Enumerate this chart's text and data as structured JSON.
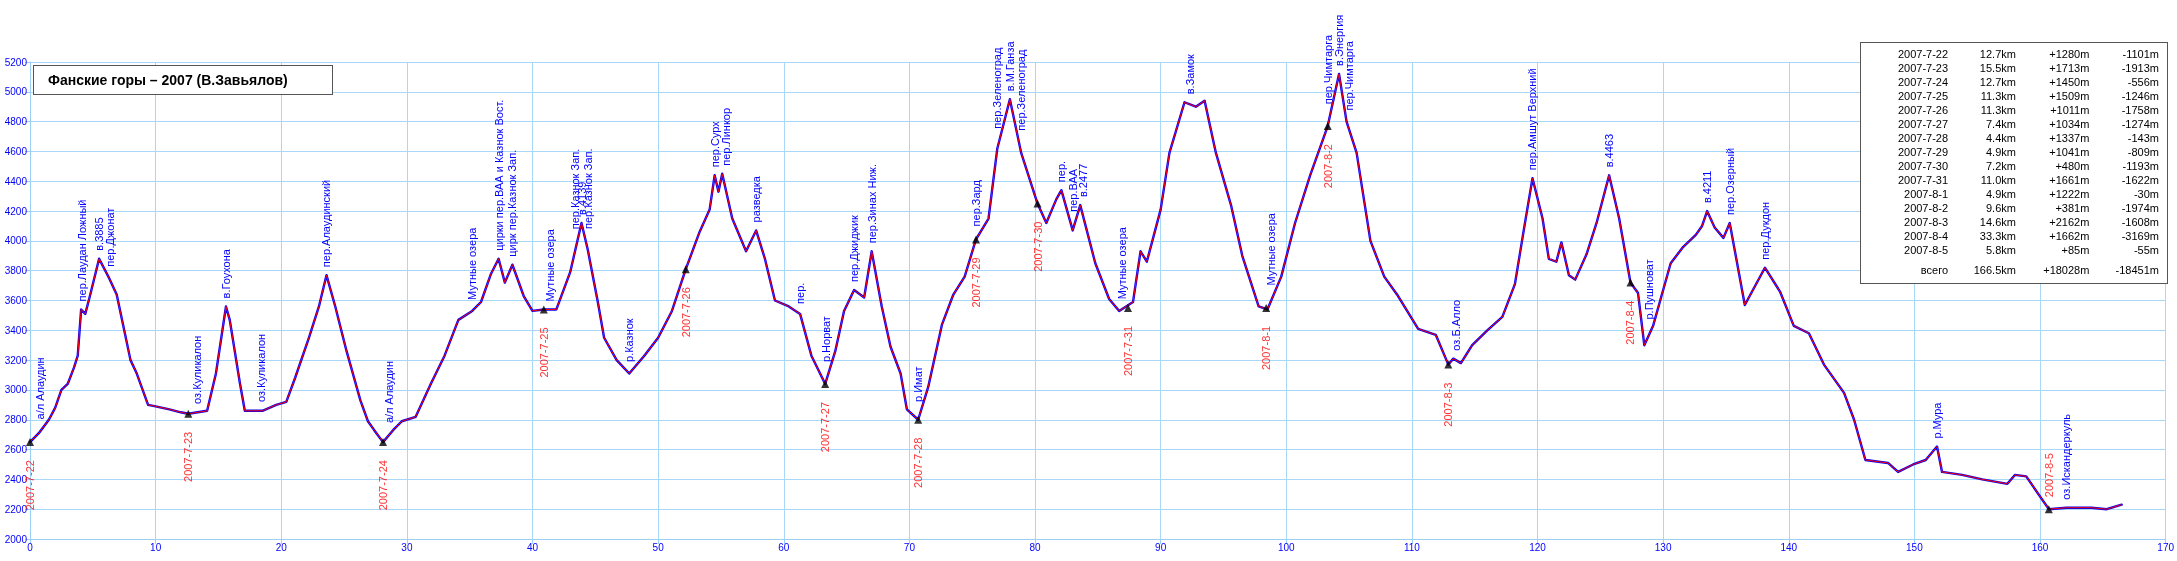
{
  "chart_data": {
    "type": "line",
    "title": "Фанские горы – 2007 (В.Завьялов)",
    "x": [
      0,
      0.7,
      1.5,
      2,
      2.5,
      3,
      3.5,
      3.8,
      4.07,
      4.4,
      4.8,
      5.5,
      6.3,
      6.9,
      7.4,
      8,
      8.5,
      9.4,
      10,
      11.1,
      12,
      12.6,
      14.1,
      14.8,
      15.6,
      15.9,
      16.7,
      17.1,
      18.5,
      19.6,
      20.4,
      21.1,
      22.2,
      23,
      23.6,
      24.3,
      25.2,
      26.3,
      26.9,
      27.4,
      28.1,
      28.9,
      29.6,
      30.7,
      31.9,
      33,
      34.1,
      35.2,
      35.9,
      36.7,
      37.3,
      37.8,
      38.4,
      39.3,
      40,
      40.9,
      41.9,
      43,
      43.9,
      44.4,
      45.2,
      45.7,
      46.7,
      47.7,
      48.9,
      50,
      51.1,
      52.2,
      53.3,
      54.1,
      54.5,
      54.8,
      55.1,
      55.9,
      57,
      57.8,
      58.5,
      59.3,
      60.4,
      61.3,
      62.2,
      63.3,
      64.1,
      64.8,
      65.6,
      66.4,
      67,
      67.8,
      68.5,
      69.3,
      69.8,
      70.7,
      71.5,
      72.6,
      73.5,
      74.4,
      75.3,
      76.3,
      77,
      78,
      78.9,
      80.2,
      80.9,
      81.7,
      82.1,
      83,
      83.6,
      84.8,
      85.9,
      86.7,
      87.8,
      88.4,
      88.9,
      90,
      90.7,
      91.9,
      92.8,
      93.5,
      94.4,
      95.6,
      96.5,
      97.8,
      98.5,
      99.6,
      100.7,
      101.9,
      103.3,
      104.2,
      104.8,
      105.6,
      106.7,
      107.8,
      108.9,
      110.5,
      111.9,
      112.9,
      113.3,
      113.9,
      114.8,
      116,
      117.2,
      118.2,
      119,
      119.6,
      120.4,
      120.9,
      121.5,
      121.9,
      122.5,
      123,
      123.9,
      124.7,
      125.7,
      126.5,
      127.4,
      128,
      128.5,
      129.2,
      129.8,
      130.6,
      131.6,
      132.6,
      133.1,
      133.5,
      134.1,
      134.8,
      135.3,
      136.5,
      138.1,
      139.3,
      140.4,
      141.6,
      142.8,
      144.4,
      145.2,
      146.1,
      147.9,
      148.7,
      149.9,
      150.9,
      151.8,
      152.2,
      153.8,
      155.4,
      157.4,
      158,
      158.9,
      160.7,
      162.1,
      164.1,
      165.3,
      166.5
    ],
    "series": [
      {
        "color": "#0000ff",
        "values": [
          2650,
          2710,
          2800,
          2880,
          3000,
          3040,
          3150,
          3230,
          3540,
          3510,
          3640,
          3880,
          3750,
          3640,
          3440,
          3200,
          3110,
          2900,
          2890,
          2870,
          2850,
          2840,
          2860,
          3110,
          3560,
          3470,
          3050,
          2860,
          2860,
          2900,
          2920,
          3080,
          3350,
          3560,
          3770,
          3560,
          3260,
          2930,
          2790,
          2730,
          2650,
          2730,
          2790,
          2820,
          3040,
          3230,
          3470,
          3530,
          3590,
          3780,
          3880,
          3720,
          3840,
          3630,
          3530,
          3540,
          3540,
          3790,
          4120,
          3940,
          3590,
          3350,
          3200,
          3110,
          3230,
          3350,
          3530,
          3810,
          4060,
          4210,
          4440,
          4330,
          4450,
          4150,
          3930,
          4070,
          3880,
          3600,
          3560,
          3510,
          3230,
          3040,
          3260,
          3530,
          3670,
          3620,
          3930,
          3560,
          3290,
          3110,
          2870,
          2800,
          3020,
          3440,
          3640,
          3760,
          4010,
          4150,
          4620,
          4950,
          4590,
          4250,
          4120,
          4280,
          4340,
          4070,
          4240,
          3850,
          3610,
          3530,
          3590,
          3930,
          3860,
          4210,
          4590,
          4930,
          4900,
          4940,
          4590,
          4240,
          3900,
          3560,
          3540,
          3760,
          4120,
          4440,
          4770,
          5120,
          4800,
          4590,
          4000,
          3760,
          3630,
          3410,
          3370,
          3170,
          3210,
          3180,
          3300,
          3400,
          3490,
          3710,
          4120,
          4420,
          4150,
          3880,
          3860,
          3990,
          3770,
          3740,
          3910,
          4120,
          4440,
          4150,
          3720,
          3650,
          3300,
          3430,
          3610,
          3850,
          3960,
          4040,
          4100,
          4200,
          4090,
          4020,
          4120,
          3570,
          3820,
          3660,
          3430,
          3380,
          3170,
          2980,
          2800,
          2530,
          2510,
          2450,
          2500,
          2530,
          2620,
          2450,
          2430,
          2400,
          2370,
          2430,
          2420,
          2200,
          2210,
          2210,
          2200,
          2230
        ]
      },
      {
        "color": "#ff0000",
        "values": [
          2650,
          2710,
          2800,
          2880,
          3000,
          3040,
          3150,
          3230,
          3540,
          3510,
          3640,
          3880,
          3750,
          3640,
          3440,
          3200,
          3110,
          2900,
          2890,
          2870,
          2850,
          2840,
          2860,
          3110,
          3560,
          3470,
          3050,
          2860,
          2860,
          2900,
          2920,
          3080,
          3350,
          3560,
          3770,
          3560,
          3260,
          2930,
          2790,
          2730,
          2650,
          2730,
          2790,
          2820,
          3040,
          3230,
          3470,
          3530,
          3590,
          3780,
          3880,
          3720,
          3840,
          3630,
          3530,
          3540,
          3540,
          3790,
          4120,
          3940,
          3590,
          3350,
          3200,
          3110,
          3230,
          3350,
          3530,
          3810,
          4060,
          4210,
          4440,
          4330,
          4450,
          4150,
          3930,
          4070,
          3880,
          3600,
          3560,
          3510,
          3230,
          3040,
          3260,
          3530,
          3670,
          3620,
          3930,
          3560,
          3290,
          3110,
          2870,
          2800,
          3020,
          3440,
          3640,
          3760,
          4010,
          4150,
          4620,
          4950,
          4590,
          4250,
          4120,
          4280,
          4340,
          4070,
          4240,
          3850,
          3610,
          3530,
          3590,
          3930,
          3860,
          4210,
          4590,
          4930,
          4900,
          4940,
          4590,
          4240,
          3900,
          3560,
          3540,
          3760,
          4120,
          4440,
          4770,
          5120,
          4800,
          4590,
          4000,
          3760,
          3630,
          3410,
          3370,
          3170,
          3210,
          3180,
          3300,
          3400,
          3490,
          3710,
          4120,
          4420,
          4150,
          3880,
          3860,
          3990,
          3770,
          3740,
          3910,
          4120,
          4440,
          4150,
          3720,
          3650,
          3300,
          3430,
          3610,
          3850,
          3960,
          4040,
          4100,
          4200,
          4090,
          4020,
          4120,
          3570,
          3820,
          3660,
          3430,
          3380,
          3170,
          2980,
          2800,
          2530,
          2510,
          2450,
          2500,
          2530,
          2620,
          2450,
          2430,
          2400,
          2370,
          2430,
          2420,
          2200,
          2210,
          2210,
          2200,
          2230
        ]
      },
      {
        "type": "scatter",
        "color": "#000000",
        "marker": "triangle",
        "x": [
          0,
          12.6,
          28.1,
          40.9,
          52.2,
          63.3,
          70.7,
          75.3,
          80.2,
          87.4,
          98.4,
          103.3,
          112.9,
          127.4,
          160.7
        ],
        "values": [
          2650,
          2840,
          2650,
          3540,
          3810,
          3040,
          2800,
          4010,
          4250,
          3550,
          3550,
          4770,
          3170,
          3720,
          2200
        ],
        "value_labels": [
          "2007-7-22",
          "2007-7-23",
          "2007-7-24",
          "2007-7-25",
          "2007-7-26",
          "2007-7-27",
          "2007-7-28",
          "2007-7-29",
          "2007-7-30",
          "2007-7-31",
          "2007-8-1",
          "2007-8-2",
          "2007-8-3",
          "2007-8-4",
          "2007-8-5"
        ]
      }
    ],
    "xlim": [
      0,
      170
    ],
    "xticks": [
      0,
      10,
      20,
      30,
      40,
      50,
      60,
      70,
      80,
      90,
      100,
      110,
      120,
      130,
      140,
      150,
      160,
      170
    ],
    "ylim": [
      2000,
      5200
    ],
    "yticks": [
      2000,
      2200,
      2400,
      2600,
      2800,
      3000,
      3200,
      3400,
      3600,
      3800,
      4000,
      4200,
      4400,
      4600,
      4800,
      5000,
      5200
    ],
    "grid": true,
    "marker": "none",
    "line_style": "solid",
    "annotations": [
      {
        "text": "а/л Алаудин",
        "x": 0.8,
        "y": 2720
      },
      {
        "text": "пер.Лаудан Ложный",
        "x": 4.1,
        "y": 3540
      },
      {
        "text": "в.3885",
        "x": 5.5,
        "y": 3880
      },
      {
        "text": "пер.Джонат",
        "x": 6.4,
        "y": 3750
      },
      {
        "text": "оз.Куликалон",
        "x": 13.3,
        "y": 2850
      },
      {
        "text": "в.Гоухона",
        "x": 15.6,
        "y": 3560
      },
      {
        "text": "оз.Куликалон",
        "x": 18.4,
        "y": 2860
      },
      {
        "text": "пер.Алаудинский",
        "x": 23.6,
        "y": 3770
      },
      {
        "text": "а/л Алаудин",
        "x": 28.6,
        "y": 2700
      },
      {
        "text": "Мутные озера",
        "x": 35.2,
        "y": 3530
      },
      {
        "text": "цирки пер.ВАА и Казнок Вост.",
        "x": 37.3,
        "y": 3880
      },
      {
        "text": "цирк пер.Казнок Зап.",
        "x": 38.4,
        "y": 3840
      },
      {
        "text": "Мутные озера",
        "x": 41.4,
        "y": 3540
      },
      {
        "text": "пер.Казнок Зап.",
        "x": 43.4,
        "y": 3940
      },
      {
        "text": "в.4139",
        "x": 43.9,
        "y": 4120
      },
      {
        "text": "пер.Казнок Зап.",
        "x": 44.4,
        "y": 3940
      },
      {
        "text": "р.Казнок",
        "x": 47.7,
        "y": 3110
      },
      {
        "text": "пер.Сурх",
        "x": 54.5,
        "y": 4440
      },
      {
        "text": "пер.Линкор",
        "x": 55.4,
        "y": 4450
      },
      {
        "text": "разведка",
        "x": 57.8,
        "y": 4070
      },
      {
        "text": "пер.",
        "x": 61.3,
        "y": 3510
      },
      {
        "text": "р.Норват",
        "x": 63.4,
        "y": 3040
      },
      {
        "text": "пер.Джиджик",
        "x": 65.6,
        "y": 3670
      },
      {
        "text": "пер.Зинах Ниж.",
        "x": 67,
        "y": 3930
      },
      {
        "text": "р.Имат",
        "x": 70.7,
        "y": 2800
      },
      {
        "text": "пер.Зард",
        "x": 75.3,
        "y": 4010
      },
      {
        "text": "пер.Зеленоград",
        "x": 77,
        "y": 4620
      },
      {
        "text": "в.М.Ганза",
        "x": 78,
        "y": 4950
      },
      {
        "text": "пер.Зеленоград",
        "x": 78.9,
        "y": 4590
      },
      {
        "text": "пер.",
        "x": 82.1,
        "y": 4340
      },
      {
        "text": "пер.ВАА",
        "x": 83,
        "y": 4070
      },
      {
        "text": "в.2477",
        "x": 83.8,
        "y": 4240
      },
      {
        "text": "Мутные озера",
        "x": 86.9,
        "y": 3530
      },
      {
        "text": "в.Замок",
        "x": 92.3,
        "y": 4930
      },
      {
        "text": "Мутные озера",
        "x": 98.8,
        "y": 3560
      },
      {
        "text": "пер.Чимтарга",
        "x": 103.3,
        "y": 4770
      },
      {
        "text": "в.Энергия",
        "x": 104.2,
        "y": 5120
      },
      {
        "text": "пер.Чимтарга",
        "x": 105,
        "y": 4800
      },
      {
        "text": "оз.Б.Алло",
        "x": 113.5,
        "y": 3210
      },
      {
        "text": "пер.Амшут Верхний",
        "x": 119.6,
        "y": 4420
      },
      {
        "text": "в.4463",
        "x": 125.7,
        "y": 4440
      },
      {
        "text": "р.Пушноват",
        "x": 128.9,
        "y": 3370
      },
      {
        "text": "в.4211",
        "x": 133.5,
        "y": 4200
      },
      {
        "text": "пер.Озерный",
        "x": 135.3,
        "y": 4120
      },
      {
        "text": "пер.Дукдон",
        "x": 138.1,
        "y": 3820
      },
      {
        "text": "р.Мура",
        "x": 151.8,
        "y": 2620
      },
      {
        "text": "оз.Искандеркуль",
        "x": 162.1,
        "y": 2210
      },
      "2007-7-22 12.7km +1280m -1101m",
      "2007-7-23 15.5km +1713m -1913m",
      "2007-7-24 12.7km +1450m -556m",
      "2007-7-25 11.3km +1509m -1246m",
      "2007-7-26 11.3km +1011m -1758m",
      "2007-7-27 7.4km +1034m -1274m",
      "2007-7-28 4.4km +1337m -143m",
      "2007-7-29 4.9km +1041m -809m",
      "2007-7-30 7.2km +480m -1193m",
      "2007-7-31 11.0km +1661m -1622m",
      "2007-8-1 4.9km +1222m -30m",
      "2007-8-2 9.6km +381m -1974m",
      "2007-8-3 14.6km +2162m -1608m",
      "2007-8-4 33.3km +1662m -3169m",
      "2007-8-5 5.8km +85m -55m",
      "всего 166.5km +18028m -18451m"
    ]
  }
}
